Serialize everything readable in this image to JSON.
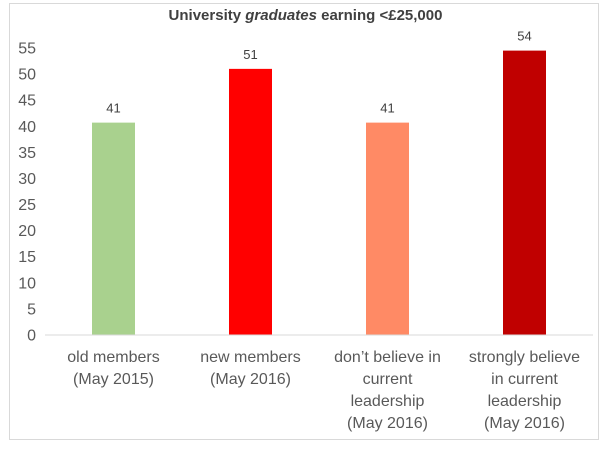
{
  "chart_data": {
    "type": "bar",
    "title_prefix": "University ",
    "title_emph": "graduates",
    "title_suffix": " earning <£25,000",
    "categories": [
      [
        "old members",
        "(May 2015)"
      ],
      [
        "new members",
        "(May 2016)"
      ],
      [
        "don’t believe in",
        "current",
        "leadership",
        "(May 2016)"
      ],
      [
        "strongly believe",
        "in current",
        "leadership",
        "(May 2016)"
      ]
    ],
    "values": [
      41,
      51,
      41,
      54
    ],
    "value_positions": [
      40.7,
      51,
      40.7,
      54.5
    ],
    "colors": [
      "#a9d18e",
      "#ff0000",
      "#ff8a65",
      "#c00000"
    ],
    "ylim": [
      0,
      55
    ],
    "yticks": [
      0,
      5,
      10,
      15,
      20,
      25,
      30,
      35,
      40,
      45,
      50,
      55
    ],
    "xlabel": "",
    "ylabel": "",
    "grid": false,
    "legend": "none"
  }
}
